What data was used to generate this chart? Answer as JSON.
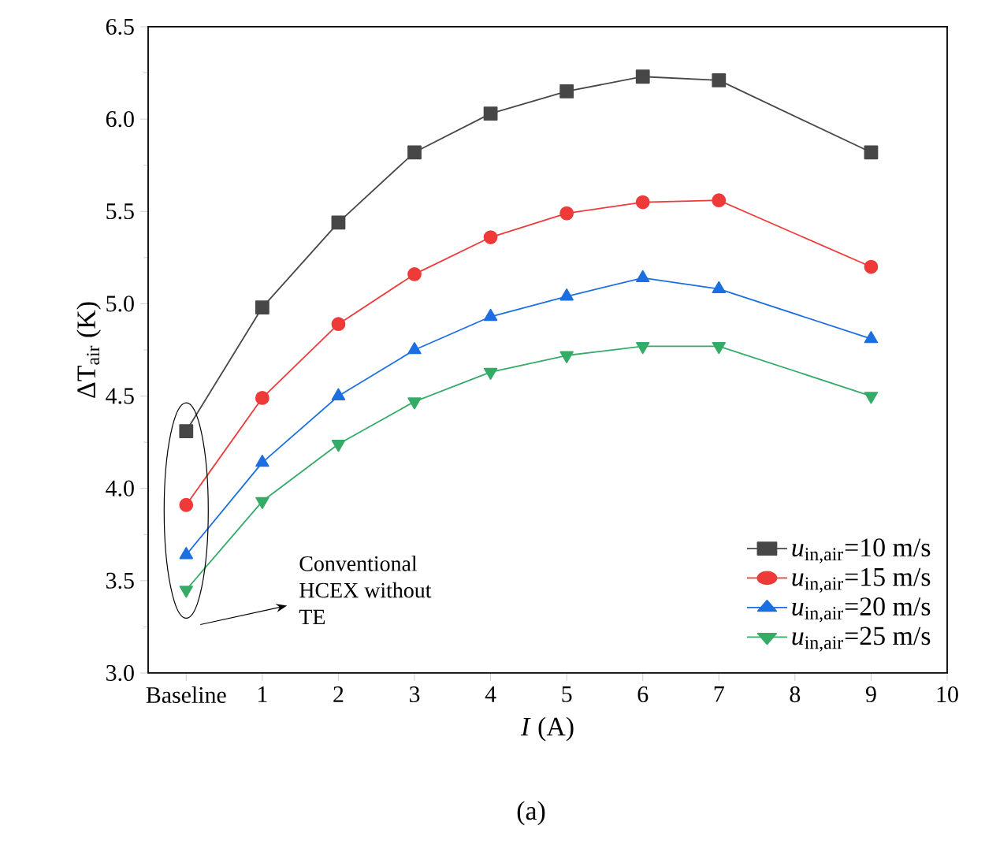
{
  "chart_data": {
    "type": "line",
    "xlabel": "*I* (A)",
    "ylabel": "ΔT$_{air}$ (K)",
    "x": [
      0,
      1,
      2,
      3,
      4,
      5,
      6,
      7,
      9
    ],
    "series": [
      {
        "name": "*u*$_{in,air}$=10 m/s",
        "color": "#474747",
        "marker": "square",
        "values": [
          4.31,
          4.98,
          5.44,
          5.82,
          6.03,
          6.15,
          6.23,
          6.21,
          5.82
        ]
      },
      {
        "name": "*u*$_{in,air}$=15 m/s",
        "color": "#ef3a3a",
        "marker": "circle",
        "values": [
          3.91,
          4.49,
          4.89,
          5.16,
          5.36,
          5.49,
          5.55,
          5.56,
          5.2
        ]
      },
      {
        "name": "*u*$_{in,air}$=20 m/s",
        "color": "#1b6fe0",
        "marker": "triangle",
        "values": [
          3.64,
          4.14,
          4.5,
          4.75,
          4.93,
          5.04,
          5.14,
          5.08,
          4.81
        ]
      },
      {
        "name": "*u*$_{in,air}$=25 m/s",
        "color": "#35ab68",
        "marker": "triangle-down",
        "values": [
          3.45,
          3.93,
          4.24,
          4.47,
          4.63,
          4.72,
          4.77,
          4.77,
          4.5
        ]
      }
    ],
    "xlim": [
      -0.5,
      10
    ],
    "ylim": [
      3.0,
      6.5
    ],
    "xticks": [
      {
        "value": 0,
        "label": "Baseline"
      },
      1,
      2,
      3,
      4,
      5,
      6,
      7,
      8,
      9,
      10
    ],
    "yticks": [
      {
        "value": 3,
        "label": "3.0"
      },
      3.5,
      {
        "value": 4,
        "label": "4.0"
      },
      4.5,
      {
        "value": 5,
        "label": "5.0"
      },
      5.5,
      {
        "value": 6,
        "label": "6.0"
      },
      6.5
    ],
    "legend": "bottom right",
    "grid": false,
    "line_style": "solid",
    "annotations": [
      "Conventional HCEX without TE",
      "(a)"
    ]
  }
}
